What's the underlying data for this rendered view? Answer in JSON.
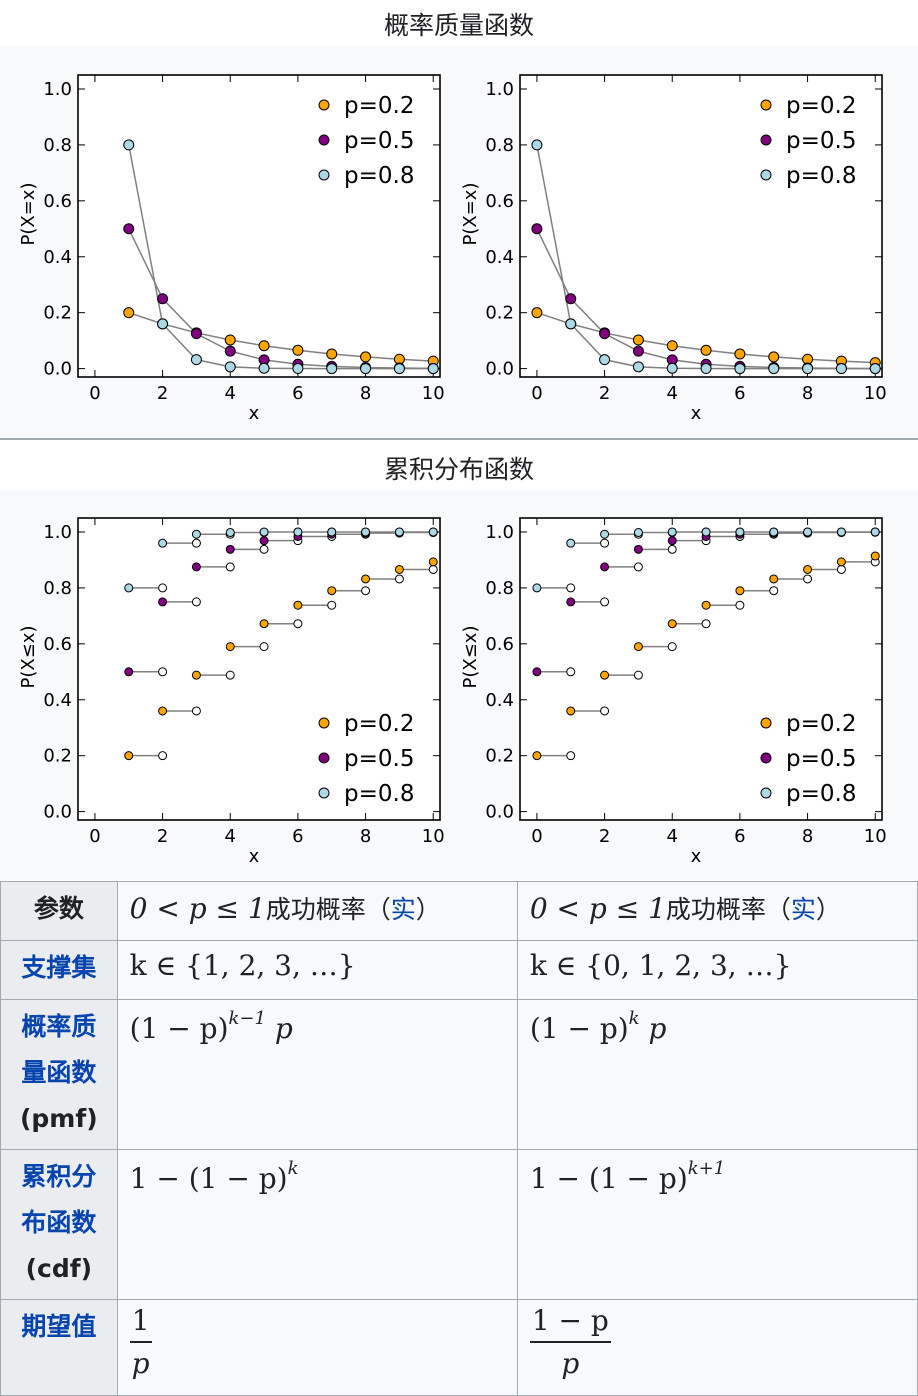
{
  "pmf_section": {
    "title": "概率质量函数"
  },
  "cdf_section": {
    "title": "累积分布函数"
  },
  "legend": [
    "p=0.2",
    "p=0.5",
    "p=0.8"
  ],
  "colors": {
    "p02": "#ffa500",
    "p05": "#800080",
    "p08": "#add8e6",
    "line": "#808080"
  },
  "chart_data": [
    {
      "type": "line",
      "ylabel": "P(X=x)",
      "xlabel": "x",
      "xlim": [
        0,
        10
      ],
      "ylim": [
        0,
        1.0
      ],
      "xticks": [
        "0",
        "2",
        "4",
        "6",
        "8",
        "10"
      ],
      "yticks": [
        "0.0",
        "0.2",
        "0.4",
        "0.6",
        "0.8",
        "1.0"
      ],
      "legend_position": "top-right",
      "x": [
        1,
        2,
        3,
        4,
        5,
        6,
        7,
        8,
        9,
        10
      ],
      "series": [
        {
          "name": "p=0.2",
          "values": [
            0.2,
            0.16,
            0.128,
            0.1024,
            0.0819,
            0.0655,
            0.0524,
            0.0419,
            0.0336,
            0.0268
          ]
        },
        {
          "name": "p=0.5",
          "values": [
            0.5,
            0.25,
            0.125,
            0.0625,
            0.0313,
            0.0156,
            0.0078,
            0.0039,
            0.002,
            0.001
          ]
        },
        {
          "name": "p=0.8",
          "values": [
            0.8,
            0.16,
            0.032,
            0.0064,
            0.0013,
            0.0003,
            0.0001,
            0,
            0,
            0
          ]
        }
      ]
    },
    {
      "type": "line",
      "ylabel": "P(X=x)",
      "xlabel": "x",
      "xlim": [
        0,
        10
      ],
      "ylim": [
        0,
        1.0
      ],
      "xticks": [
        "0",
        "2",
        "4",
        "6",
        "8",
        "10"
      ],
      "yticks": [
        "0.0",
        "0.2",
        "0.4",
        "0.6",
        "0.8",
        "1.0"
      ],
      "legend_position": "top-right",
      "x": [
        0,
        1,
        2,
        3,
        4,
        5,
        6,
        7,
        8,
        9,
        10
      ],
      "series": [
        {
          "name": "p=0.2",
          "values": [
            0.2,
            0.16,
            0.128,
            0.1024,
            0.0819,
            0.0655,
            0.0524,
            0.0419,
            0.0336,
            0.0268,
            0.0215
          ]
        },
        {
          "name": "p=0.5",
          "values": [
            0.5,
            0.25,
            0.125,
            0.0625,
            0.0313,
            0.0156,
            0.0078,
            0.0039,
            0.002,
            0.001,
            0.0005
          ]
        },
        {
          "name": "p=0.8",
          "values": [
            0.8,
            0.16,
            0.032,
            0.0064,
            0.0013,
            0.0003,
            0.0001,
            0,
            0,
            0,
            0
          ]
        }
      ]
    },
    {
      "type": "scatter",
      "ylabel": "P(X≤x)",
      "xlabel": "x",
      "xlim": [
        0,
        10
      ],
      "ylim": [
        0,
        1.0
      ],
      "xticks": [
        "0",
        "2",
        "4",
        "6",
        "8",
        "10"
      ],
      "yticks": [
        "0.0",
        "0.2",
        "0.4",
        "0.6",
        "0.8",
        "1.0"
      ],
      "legend_position": "bottom-right",
      "x": [
        1,
        2,
        3,
        4,
        5,
        6,
        7,
        8,
        9,
        10
      ],
      "series": [
        {
          "name": "p=0.2",
          "values": [
            0.2,
            0.36,
            0.488,
            0.59,
            0.672,
            0.738,
            0.79,
            0.832,
            0.866,
            0.893
          ]
        },
        {
          "name": "p=0.5",
          "values": [
            0.5,
            0.75,
            0.875,
            0.938,
            0.969,
            0.984,
            0.992,
            0.996,
            0.998,
            0.999
          ]
        },
        {
          "name": "p=0.8",
          "values": [
            0.8,
            0.96,
            0.992,
            0.998,
            1.0,
            1.0,
            1.0,
            1.0,
            1.0,
            1.0
          ]
        }
      ]
    },
    {
      "type": "scatter",
      "ylabel": "P(X≤x)",
      "xlabel": "x",
      "xlim": [
        0,
        10
      ],
      "ylim": [
        0,
        1.0
      ],
      "xticks": [
        "0",
        "2",
        "4",
        "6",
        "8",
        "10"
      ],
      "yticks": [
        "0.0",
        "0.2",
        "0.4",
        "0.6",
        "0.8",
        "1.0"
      ],
      "legend_position": "bottom-right",
      "x": [
        0,
        1,
        2,
        3,
        4,
        5,
        6,
        7,
        8,
        9,
        10
      ],
      "series": [
        {
          "name": "p=0.2",
          "values": [
            0.2,
            0.36,
            0.488,
            0.59,
            0.672,
            0.738,
            0.79,
            0.832,
            0.866,
            0.893,
            0.914
          ]
        },
        {
          "name": "p=0.5",
          "values": [
            0.5,
            0.75,
            0.875,
            0.938,
            0.969,
            0.984,
            0.992,
            0.996,
            0.998,
            0.999,
            1.0
          ]
        },
        {
          "name": "p=0.8",
          "values": [
            0.8,
            0.96,
            0.992,
            0.998,
            1.0,
            1.0,
            1.0,
            1.0,
            1.0,
            1.0,
            1.0
          ]
        }
      ]
    }
  ],
  "table": {
    "params": {
      "label": "参数",
      "left": "0 < p ≤ 1",
      "left_text": "成功概率（",
      "left_link": "实",
      "left_close": "）",
      "right": "0 < p ≤ 1",
      "right_text": "成功概率（",
      "right_link": "实",
      "right_close": "）"
    },
    "support": {
      "label": "支撑集",
      "left": "k ∈ {1, 2, 3, …}",
      "right": "k ∈ {0, 1, 2, 3, …}"
    },
    "pmf": {
      "label1": "概率质",
      "label2": "量函数",
      "label3": "(pmf)",
      "left_base": "(1 − p)",
      "left_exp": "k−1",
      "left_tail": " p",
      "right_base": "(1 − p)",
      "right_exp": "k",
      "right_tail": " p"
    },
    "cdf": {
      "label1": "累积分",
      "label2": "布函数",
      "label3": "(cdf)",
      "left_base": "1 − (1 − p)",
      "left_exp": "k",
      "right_base": "1 − (1 − p)",
      "right_exp": "k+1"
    },
    "mean": {
      "label": "期望值",
      "left_num": "1",
      "left_den": "p",
      "right_num": "1 − p",
      "right_den": "p"
    }
  }
}
